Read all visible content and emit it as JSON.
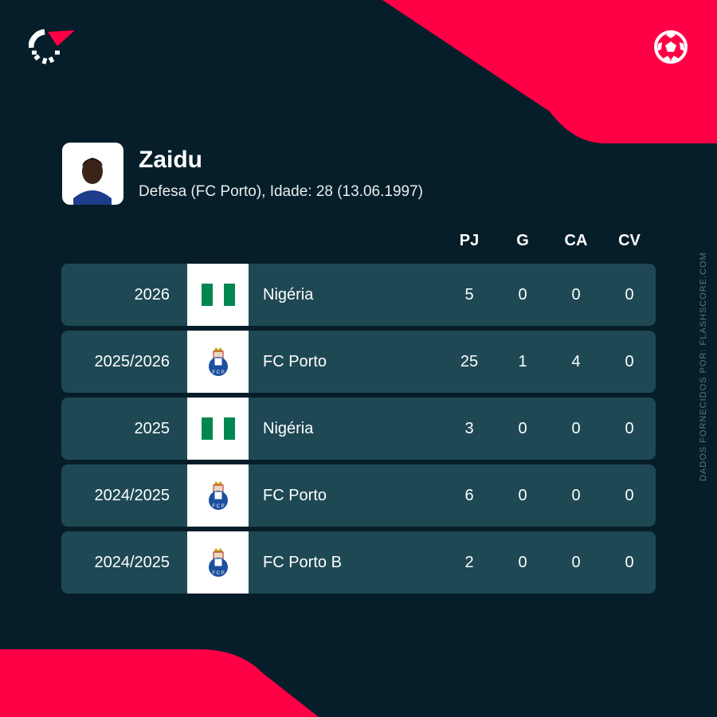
{
  "colors": {
    "background": "#061e29",
    "accent": "#ff0046",
    "row": "#1e4854"
  },
  "player": {
    "name": "Zaidu",
    "details": "Defesa (FC Porto), Idade: 28 (13.06.1997)"
  },
  "headers": [
    "PJ",
    "G",
    "CA",
    "CV"
  ],
  "rows": [
    {
      "season": "2026",
      "team": "Nigéria",
      "icon": "nigeria-flag",
      "stats": [
        "5",
        "0",
        "0",
        "0"
      ]
    },
    {
      "season": "2025/2026",
      "team": "FC Porto",
      "icon": "fc-porto-crest",
      "stats": [
        "25",
        "1",
        "4",
        "0"
      ]
    },
    {
      "season": "2025",
      "team": "Nigéria",
      "icon": "nigeria-flag",
      "stats": [
        "3",
        "0",
        "0",
        "0"
      ]
    },
    {
      "season": "2024/2025",
      "team": "FC Porto",
      "icon": "fc-porto-crest",
      "stats": [
        "6",
        "0",
        "0",
        "0"
      ]
    },
    {
      "season": "2024/2025",
      "team": "FC Porto B",
      "icon": "fc-porto-crest",
      "stats": [
        "2",
        "0",
        "0",
        "0"
      ]
    }
  ],
  "credit": "DADOS FORNECIDOS POR: FLASHSCORE.COM"
}
